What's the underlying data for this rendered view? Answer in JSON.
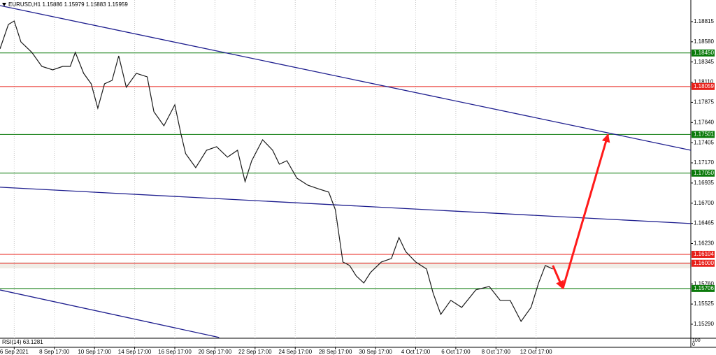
{
  "chart_data": {
    "type": "line",
    "title": "EURUSD,H1  1.15886 1.15979 1.15883 1.15959",
    "color": "#1a1a1a",
    "x": [
      0,
      10,
      17,
      25,
      38,
      50,
      63,
      75,
      84,
      90,
      100,
      109,
      117,
      125,
      134,
      142,
      151,
      163,
      176,
      184,
      196,
      209,
      216,
      222,
      234,
      247,
      259,
      272,
      284,
      293,
      301,
      314,
      326,
      334,
      343,
      355,
      368,
      380,
      393,
      401,
      410,
      418,
      426,
      435,
      443,
      456,
      468,
      477,
      485,
      497,
      510,
      518,
      527,
      539,
      552,
      569,
      585,
      598,
      610,
      623,
      635,
      644,
      652,
      661
    ],
    "values": [
      1.18498,
      1.18782,
      1.18823,
      1.18579,
      1.18457,
      1.18294,
      1.18253,
      1.18294,
      1.18294,
      1.18457,
      1.18213,
      1.18091,
      1.17806,
      1.18091,
      1.18131,
      1.18416,
      1.1805,
      1.18213,
      1.18172,
      1.17765,
      1.17602,
      1.17846,
      1.17521,
      1.17277,
      1.17114,
      1.17317,
      1.17358,
      1.17236,
      1.17317,
      1.16951,
      1.17195,
      1.17439,
      1.17317,
      1.17154,
      1.17195,
      1.16992,
      1.1691,
      1.1687,
      1.16829,
      1.16625,
      1.16015,
      1.15974,
      1.15852,
      1.15771,
      1.15893,
      1.16015,
      1.16056,
      1.163,
      1.16137,
      1.16015,
      1.15934,
      1.15649,
      1.15405,
      1.15568,
      1.15486,
      1.1569,
      1.1573,
      1.15568,
      1.15568,
      1.15323,
      1.15486,
      1.15771,
      1.15974,
      1.15934
    ],
    "xlim": [
      0,
      826
    ],
    "xticks": [
      {
        "value": 17,
        "label": "6 Sep 2021"
      },
      {
        "value": 65,
        "label": "8 Sep 17:00"
      },
      {
        "value": 113,
        "label": "10 Sep 17:00"
      },
      {
        "value": 161,
        "label": "14 Sep 17:00"
      },
      {
        "value": 209,
        "label": "16 Sep 17:00"
      },
      {
        "value": 257,
        "label": "20 Sep 17:00"
      },
      {
        "value": 305,
        "label": "22 Sep 17:00"
      },
      {
        "value": 353,
        "label": "24 Sep 17:00"
      },
      {
        "value": 401,
        "label": "28 Sep 17:00"
      },
      {
        "value": 449,
        "label": "30 Sep 17:00"
      },
      {
        "value": 497,
        "label": "4 Oct 17:00"
      },
      {
        "value": 545,
        "label": "6 Oct 17:00"
      },
      {
        "value": 593,
        "label": "8 Oct 17:00"
      },
      {
        "value": 641,
        "label": "12 Oct 17:00"
      }
    ],
    "ylim": [
      1.15135,
      1.19067
    ],
    "yticks": [
      1.18815,
      {
        "value": 1.1858,
        "label": "1.18580"
      },
      1.18345,
      {
        "value": 1.1811,
        "label": "1.18110"
      },
      1.17875,
      {
        "value": 1.1764,
        "label": "1.17640"
      },
      1.17405,
      {
        "value": 1.1717,
        "label": "1.17170"
      },
      1.16935,
      {
        "value": 1.167,
        "label": "1.16700"
      },
      1.16465,
      {
        "value": 1.1623,
        "label": "1.16230"
      },
      {
        "value": 1.1576,
        "label": "1.15760"
      },
      1.15525,
      {
        "value": 1.1529,
        "label": "1.15290"
      }
    ],
    "grid": true,
    "levels": [
      {
        "value": 1.1845,
        "label": "1.18450",
        "color": "#0a7a0a"
      },
      {
        "value": 1.18059,
        "label": "1.18059",
        "color": "#e8201a"
      },
      {
        "value": 1.17501,
        "label": "1.17501",
        "color": "#0a7a0a"
      },
      {
        "value": 1.1705,
        "label": "1.17050",
        "color": "#0a7a0a"
      },
      {
        "value": 1.16104,
        "label": "1.16104",
        "color": "#e8201a"
      },
      {
        "value": 1.16,
        "label": "1.16000",
        "color": "#e8201a"
      },
      {
        "value": 1.15706,
        "label": "1.15706",
        "color": "#0a7a0a"
      }
    ],
    "trendlines": [
      {
        "x": [
          0,
          826
        ],
        "y": [
          1.19002,
          1.17317
        ],
        "color": "#1f1f8f"
      },
      {
        "x": [
          0,
          826
        ],
        "y": [
          1.16886,
          1.16463
        ],
        "color": "#1f1f8f"
      },
      {
        "x": [
          0,
          262
        ],
        "y": [
          1.15689,
          1.15136
        ],
        "color": "#1f1f8f"
      }
    ],
    "arrow": {
      "x": [
        661,
        673,
        727
      ],
      "y": [
        1.15974,
        1.15706,
        1.17501
      ],
      "color": "#ff1a1a"
    },
    "rsi": {
      "label": "RSI(14) 63.1281",
      "yticks": [
        100,
        0
      ]
    }
  }
}
